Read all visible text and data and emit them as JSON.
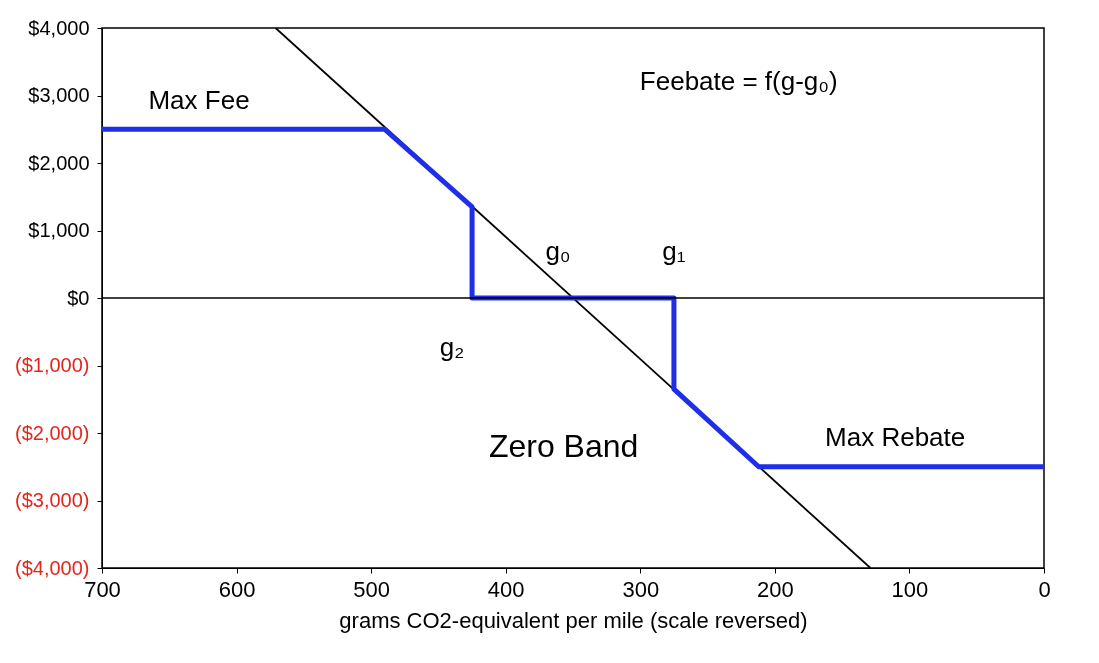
{
  "chart_data": {
    "type": "line",
    "xlabel": "grams CO2-equivalent per mile (scale reversed)",
    "xlim": [
      700,
      0
    ],
    "xticks": [
      700,
      600,
      500,
      400,
      300,
      200,
      100,
      0
    ],
    "ylim": [
      -4000,
      4000
    ],
    "yticks": [
      {
        "value": 4000,
        "label": "$4,000"
      },
      {
        "value": 3000,
        "label": "$3,000"
      },
      {
        "value": 2000,
        "label": "$2,000"
      },
      {
        "value": 1000,
        "label": "$1,000"
      },
      {
        "value": 0,
        "label": "$0"
      },
      {
        "value": -1000,
        "label": "($1,000)"
      },
      {
        "value": -2000,
        "label": "($2,000)"
      },
      {
        "value": -3000,
        "label": "($3,000)"
      },
      {
        "value": -4000,
        "label": "($4,000)"
      }
    ],
    "series": [
      {
        "color": "#000000",
        "x": [
          571,
          129
        ],
        "values": [
          4000,
          -4000
        ]
      },
      {
        "color": "#1f2ee8",
        "x": [
          700,
          490,
          425,
          425,
          275,
          275,
          212,
          0
        ],
        "values": [
          2500,
          2500,
          1350,
          0,
          0,
          -1350,
          -2500,
          -2500
        ]
      }
    ],
    "ref_lines": [
      {
        "axis": "y",
        "value": 0,
        "color": "#000000"
      }
    ],
    "annotations": [
      "Max Fee",
      "Feebate = f(g-g₀)",
      {
        "text": "g₀",
        "x": 350,
        "y": 0
      },
      {
        "text": "g₁",
        "x": 275,
        "y": 0
      },
      {
        "text": "g₂",
        "x": 425,
        "y": 0
      },
      "Zero Band",
      "Max Rebate"
    ],
    "grid": false
  }
}
